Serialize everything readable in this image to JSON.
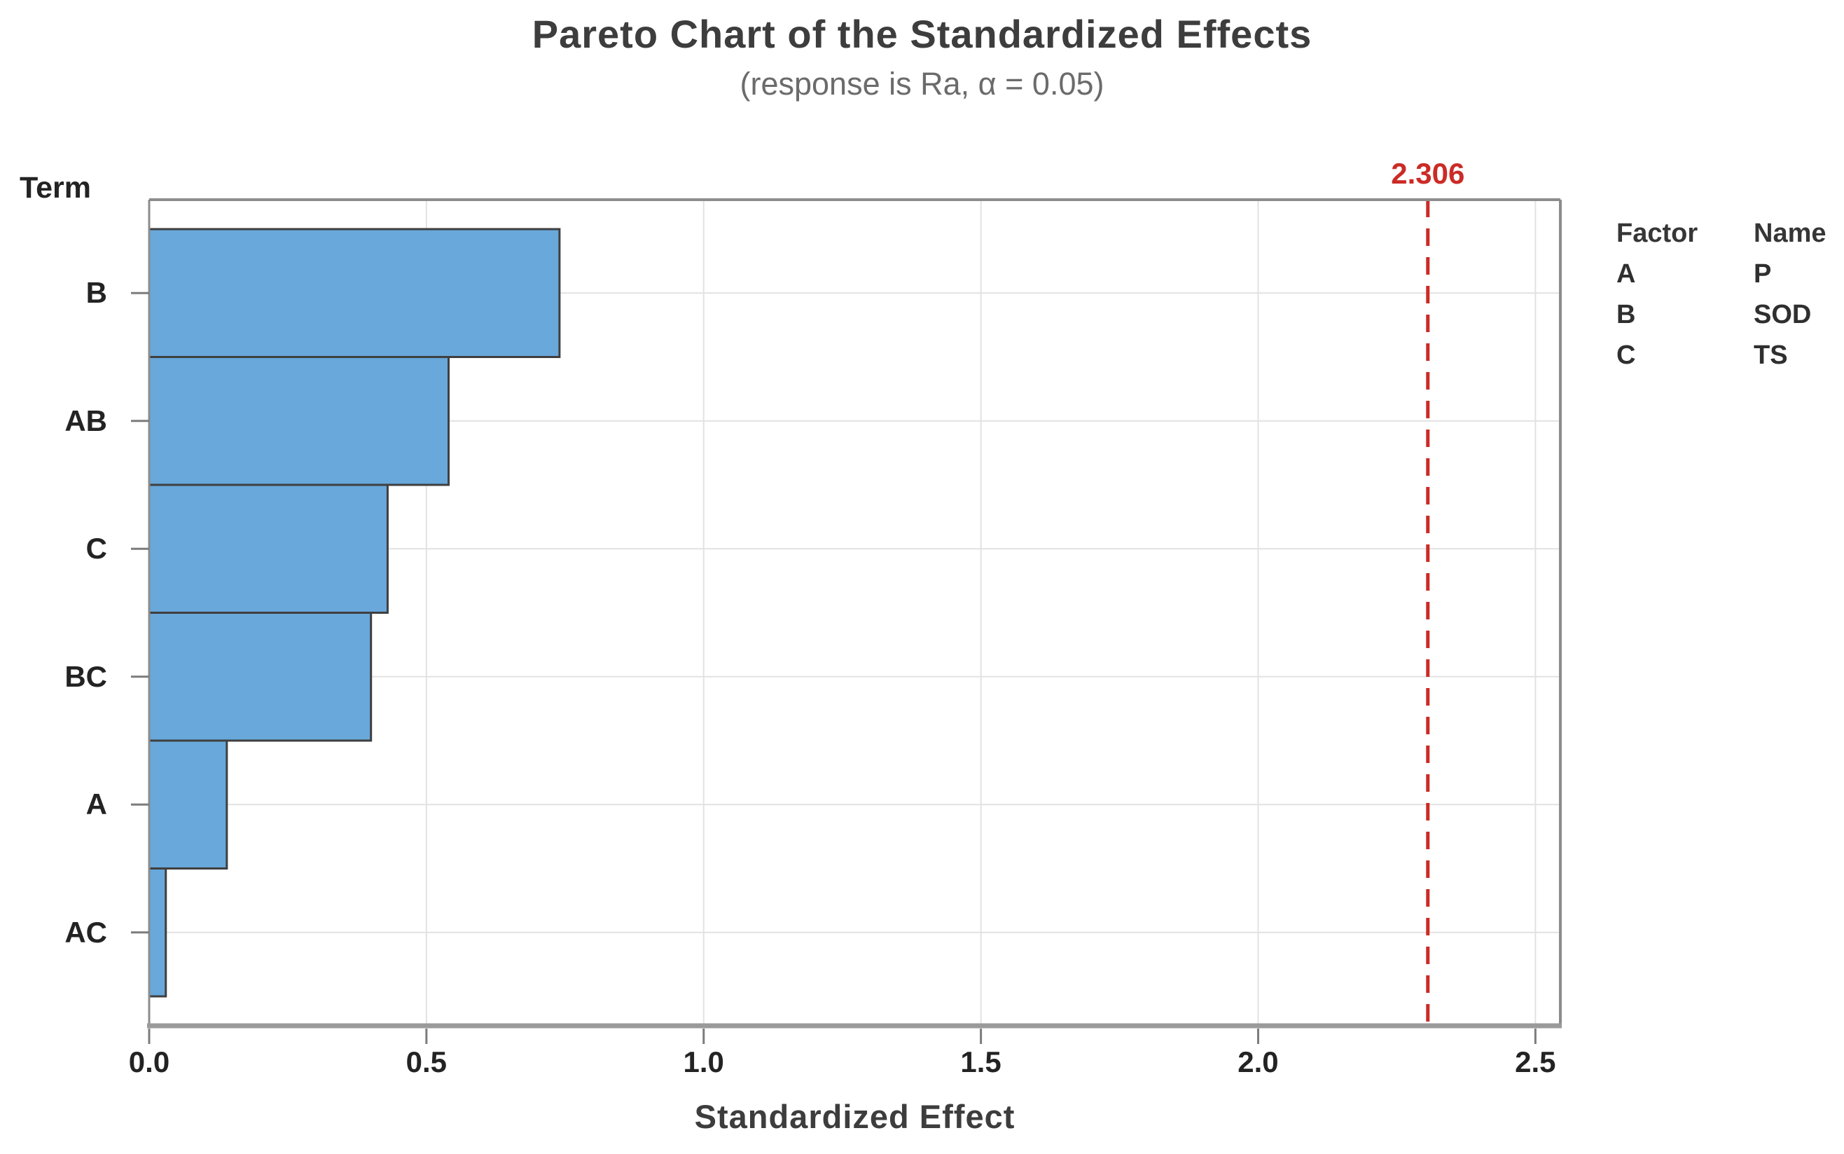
{
  "chart_data": {
    "type": "bar",
    "orientation": "horizontal",
    "title": "Pareto Chart of the Standardized Effects",
    "subtitle": "(response is Ra, α = 0.05)",
    "xlabel": "Standardized Effect",
    "ylabel": "Term",
    "categories": [
      "B",
      "AB",
      "C",
      "BC",
      "A",
      "AC"
    ],
    "values": [
      0.74,
      0.54,
      0.43,
      0.4,
      0.14,
      0.03
    ],
    "xlim": [
      0,
      2.545
    ],
    "xticks": [
      "0.0",
      "0.5",
      "1.0",
      "1.5",
      "2.0",
      "2.5"
    ],
    "xtick_values": [
      0,
      0.5,
      1.0,
      1.5,
      2.0,
      2.5
    ],
    "grid": true,
    "reference_line": {
      "value": 2.306,
      "label": "2.306",
      "style": "dashed"
    },
    "legend_position": "right"
  },
  "legend": {
    "headers": [
      "Factor",
      "Name"
    ],
    "rows": [
      {
        "factor": "A",
        "name": "P"
      },
      {
        "factor": "B",
        "name": "SOD"
      },
      {
        "factor": "C",
        "name": "TS"
      }
    ]
  },
  "colors": {
    "bar_fill": "#68a8db",
    "bar_border": "#3f3f3f",
    "reference": "#cb2b26",
    "grid": "#e2e2e2",
    "axis": "#8c8c8c",
    "axis_bottom": "#9a9a9a",
    "tick": "#7c7c7c",
    "title_text": "#3d3d3d",
    "subtitle_text": "#6b6b6b",
    "label_text": "#232323"
  }
}
